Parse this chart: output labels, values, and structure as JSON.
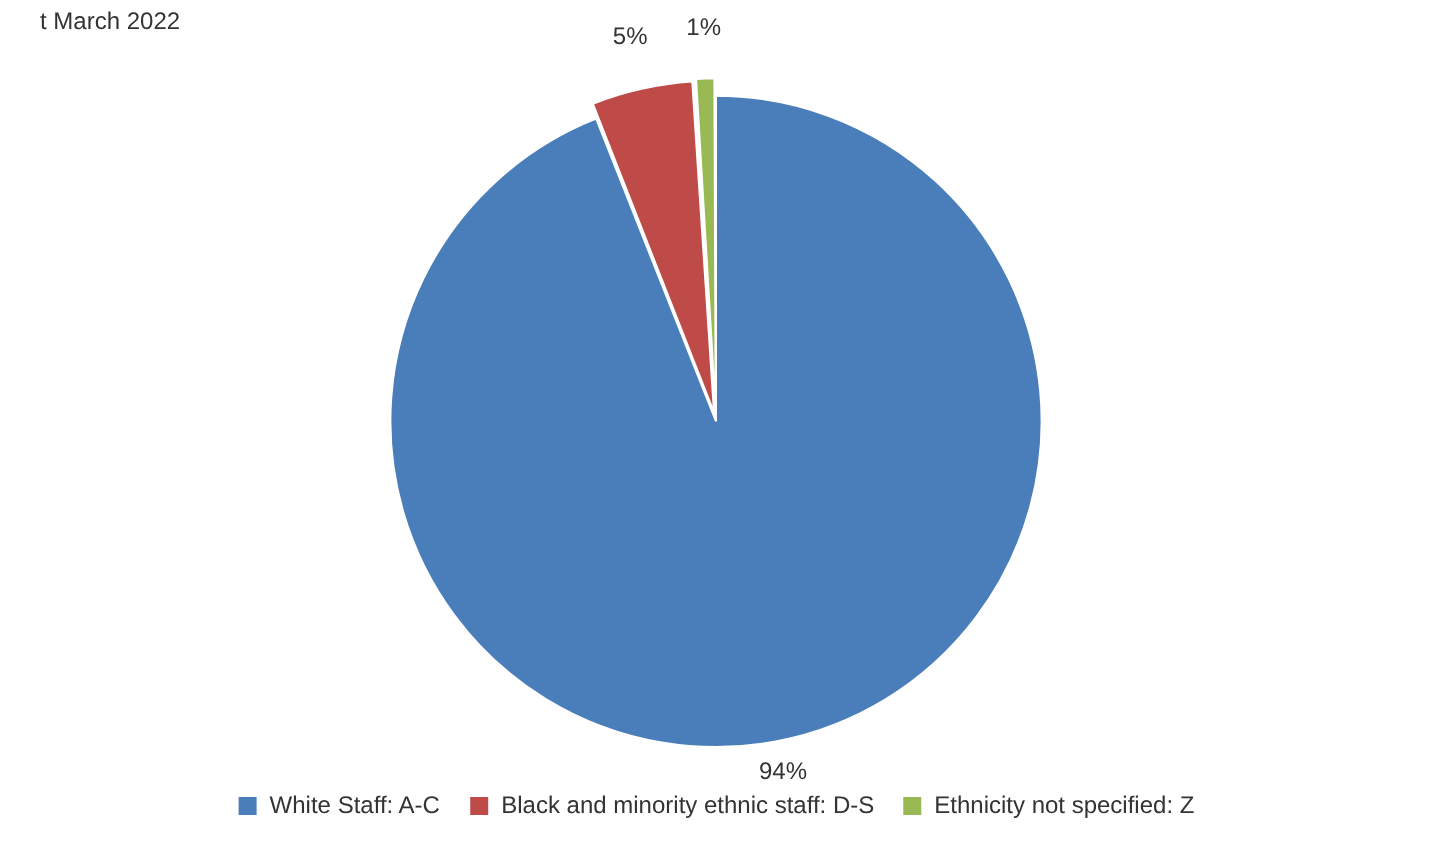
{
  "chart_data": {
    "type": "pie",
    "title": "t March 2022",
    "categories": [
      "White Staff: A-C",
      "Black and minority ethnic staff: D-S",
      "Ethnicity not specified: Z"
    ],
    "values": [
      94,
      5,
      1
    ],
    "colors": [
      "#4a7ebb",
      "#be4b48",
      "#98b954"
    ],
    "value_labels": [
      "94%",
      "5%",
      "1%"
    ],
    "legend": "bottom"
  }
}
